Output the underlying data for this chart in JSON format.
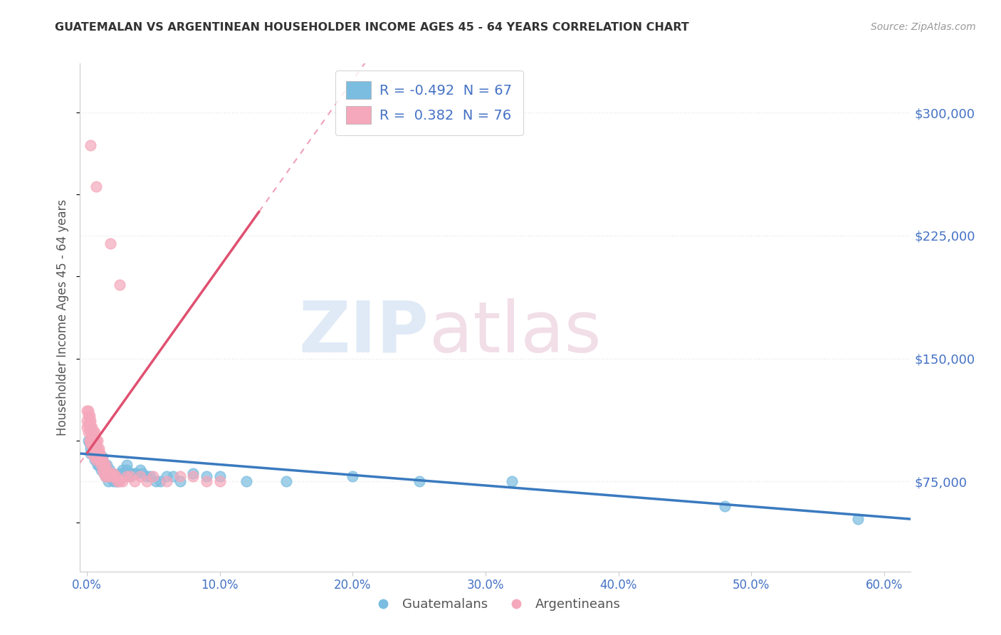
{
  "title": "GUATEMALAN VS ARGENTINEAN HOUSEHOLDER INCOME AGES 45 - 64 YEARS CORRELATION CHART",
  "source": "Source: ZipAtlas.com",
  "ylabel": "Householder Income Ages 45 - 64 years",
  "xlabel_ticks": [
    "0.0%",
    "10.0%",
    "20.0%",
    "30.0%",
    "40.0%",
    "50.0%",
    "60.0%"
  ],
  "xlabel_vals": [
    0.0,
    0.1,
    0.2,
    0.3,
    0.4,
    0.5,
    0.6
  ],
  "ytick_labels": [
    "$75,000",
    "$150,000",
    "$225,000",
    "$300,000"
  ],
  "ytick_vals": [
    75000,
    150000,
    225000,
    300000
  ],
  "ylim": [
    20000,
    330000
  ],
  "xlim": [
    -0.005,
    0.62
  ],
  "guatemalan_color": "#7bbde0",
  "argentinean_color": "#f5a8bb",
  "guatemalan_line_color": "#3a7abf",
  "argentinean_line_color": "#e05070",
  "argentinean_dashed_color": "#f0a0b8",
  "R_guatemalan": -0.492,
  "N_guatemalan": 67,
  "R_argentinean": 0.382,
  "N_argentinean": 76,
  "legend_label_guatemalans": "Guatemalans",
  "legend_label_argentineans": "Argentineans",
  "background_color": "#ffffff",
  "grid_color": "#e8e8e8",
  "title_color": "#333333",
  "label_color": "#555555",
  "tick_color": "#4472c4",
  "guatemalan_scatter_x": [
    0.001,
    0.002,
    0.003,
    0.003,
    0.004,
    0.005,
    0.006,
    0.006,
    0.007,
    0.007,
    0.008,
    0.008,
    0.009,
    0.009,
    0.01,
    0.01,
    0.011,
    0.011,
    0.012,
    0.012,
    0.013,
    0.013,
    0.014,
    0.014,
    0.015,
    0.015,
    0.016,
    0.016,
    0.017,
    0.017,
    0.018,
    0.019,
    0.02,
    0.02,
    0.021,
    0.022,
    0.023,
    0.024,
    0.025,
    0.026,
    0.027,
    0.028,
    0.03,
    0.03,
    0.032,
    0.033,
    0.035,
    0.037,
    0.04,
    0.042,
    0.045,
    0.048,
    0.052,
    0.055,
    0.06,
    0.065,
    0.07,
    0.08,
    0.09,
    0.1,
    0.12,
    0.15,
    0.2,
    0.25,
    0.32,
    0.48,
    0.58
  ],
  "guatemalan_scatter_y": [
    100000,
    98000,
    95000,
    92000,
    105000,
    95000,
    92000,
    88000,
    95000,
    90000,
    92000,
    85000,
    90000,
    85000,
    92000,
    88000,
    88000,
    82000,
    90000,
    85000,
    85000,
    80000,
    82000,
    78000,
    85000,
    80000,
    80000,
    75000,
    82000,
    78000,
    80000,
    78000,
    78000,
    75000,
    78000,
    75000,
    75000,
    78000,
    80000,
    80000,
    82000,
    78000,
    82000,
    85000,
    80000,
    78000,
    80000,
    80000,
    82000,
    80000,
    78000,
    78000,
    75000,
    75000,
    78000,
    78000,
    75000,
    80000,
    78000,
    78000,
    75000,
    75000,
    78000,
    75000,
    75000,
    60000,
    52000
  ],
  "argentinean_scatter_x": [
    0.0,
    0.0,
    0.0,
    0.001,
    0.001,
    0.001,
    0.001,
    0.002,
    0.002,
    0.002,
    0.002,
    0.003,
    0.003,
    0.003,
    0.003,
    0.003,
    0.004,
    0.004,
    0.004,
    0.004,
    0.004,
    0.005,
    0.005,
    0.005,
    0.005,
    0.006,
    0.006,
    0.006,
    0.006,
    0.007,
    0.007,
    0.007,
    0.007,
    0.008,
    0.008,
    0.008,
    0.009,
    0.009,
    0.009,
    0.01,
    0.01,
    0.011,
    0.011,
    0.012,
    0.012,
    0.013,
    0.013,
    0.014,
    0.014,
    0.015,
    0.015,
    0.016,
    0.017,
    0.018,
    0.019,
    0.02,
    0.021,
    0.022,
    0.023,
    0.025,
    0.027,
    0.03,
    0.033,
    0.036,
    0.04,
    0.045,
    0.05,
    0.06,
    0.07,
    0.08,
    0.09,
    0.1,
    0.018,
    0.025,
    0.003,
    0.007
  ],
  "argentinean_scatter_y": [
    118000,
    112000,
    108000,
    118000,
    115000,
    110000,
    105000,
    115000,
    112000,
    108000,
    100000,
    112000,
    108000,
    105000,
    100000,
    98000,
    108000,
    105000,
    100000,
    98000,
    92000,
    105000,
    102000,
    98000,
    95000,
    105000,
    100000,
    95000,
    90000,
    100000,
    98000,
    92000,
    88000,
    100000,
    95000,
    90000,
    95000,
    92000,
    88000,
    92000,
    88000,
    90000,
    85000,
    88000,
    82000,
    85000,
    80000,
    85000,
    78000,
    82000,
    78000,
    80000,
    80000,
    78000,
    78000,
    80000,
    78000,
    78000,
    75000,
    75000,
    75000,
    78000,
    78000,
    75000,
    78000,
    75000,
    78000,
    75000,
    78000,
    78000,
    75000,
    75000,
    220000,
    195000,
    280000,
    255000
  ]
}
